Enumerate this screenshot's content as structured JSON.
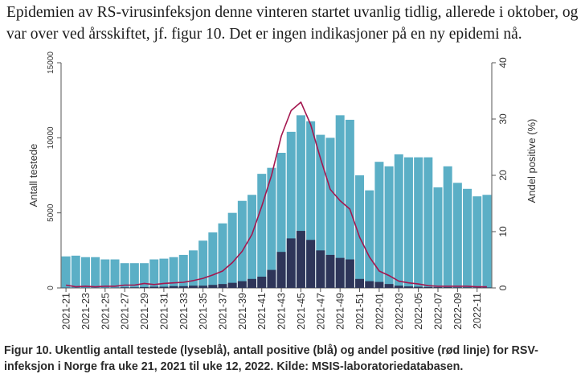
{
  "intro_text": "Epidemien av RS-virusinfeksjon denne vinteren startet uvanlig tidlig, allerede i oktober, og var over ved årsskiftet, jf. figur 10. Det er ingen indikasjoner på en ny epidemi nå.",
  "caption": "Figur 10. Ukentlig antall testede (lyseblå), antall positive (blå) og andel positive (rød linje) for RSV-infeksjon i Norge fra uke 21, 2021 til uke 12, 2022. Kilde: MSIS-laboratoriedatabasen.",
  "colors": {
    "tested": "#5bafc6",
    "positive": "#2e3559",
    "share_line": "#a4174f",
    "axis": "#555555"
  },
  "chart_data": {
    "type": "bar",
    "title": "",
    "xlabel": "",
    "ylabel": "Antall testede",
    "y2label": "Andel positive (%)",
    "ylim": [
      0,
      15000
    ],
    "y2lim": [
      0,
      40
    ],
    "yticks": [
      0,
      5000,
      10000,
      15000
    ],
    "y2ticks": [
      0,
      10,
      20,
      30,
      40
    ],
    "grid": false,
    "categories": [
      "2021-21",
      "2021-22",
      "2021-23",
      "2021-24",
      "2021-25",
      "2021-26",
      "2021-27",
      "2021-28",
      "2021-29",
      "2021-30",
      "2021-31",
      "2021-32",
      "2021-33",
      "2021-34",
      "2021-35",
      "2021-36",
      "2021-37",
      "2021-38",
      "2021-39",
      "2021-40",
      "2021-41",
      "2021-42",
      "2021-43",
      "2021-44",
      "2021-45",
      "2021-46",
      "2021-47",
      "2021-48",
      "2021-49",
      "2021-50",
      "2021-51",
      "2021-52",
      "2022-01",
      "2022-02",
      "2022-03",
      "2022-04",
      "2022-05",
      "2022-06",
      "2022-07",
      "2022-08",
      "2022-09",
      "2022-10",
      "2022-11",
      "2022-12"
    ],
    "tick_labels": [
      "2021-21",
      "2021-23",
      "2021-25",
      "2021-27",
      "2021-29",
      "2021-31",
      "2021-33",
      "2021-35",
      "2021-37",
      "2021-39",
      "2021-41",
      "2021-43",
      "2021-45",
      "2021-47",
      "2021-49",
      "2021-51",
      "2022-01",
      "2022-03",
      "2022-05",
      "2022-07",
      "2022-09",
      "2022-11"
    ],
    "series": [
      {
        "axis": "left",
        "kind": "bar",
        "values": [
          2100,
          2150,
          2050,
          2050,
          1900,
          1900,
          1650,
          1650,
          1650,
          1900,
          1950,
          2050,
          2200,
          2500,
          3150,
          3700,
          4300,
          5000,
          5800,
          6200,
          7600,
          8000,
          9000,
          10400,
          11500,
          11100,
          10200,
          10000,
          11500,
          11200,
          7500,
          6500,
          8400,
          8100,
          8900,
          8700,
          8700,
          8700,
          6700,
          8100,
          7000,
          6600,
          6100,
          6200
        ]
      },
      {
        "axis": "left",
        "kind": "bar",
        "values": [
          20,
          20,
          20,
          20,
          20,
          20,
          40,
          40,
          60,
          80,
          80,
          120,
          120,
          150,
          150,
          200,
          260,
          340,
          450,
          600,
          750,
          1200,
          2400,
          3300,
          3800,
          3200,
          2500,
          2200,
          2000,
          1900,
          600,
          450,
          400,
          260,
          150,
          100,
          80,
          60,
          50,
          50,
          40,
          40,
          30,
          30
        ]
      },
      {
        "axis": "right",
        "kind": "line",
        "values": [
          0.5,
          0.2,
          0.3,
          0.2,
          0.3,
          0.3,
          0.5,
          0.5,
          0.8,
          0.6,
          0.8,
          0.9,
          1.0,
          1.3,
          1.7,
          2.3,
          3.0,
          4.5,
          6.5,
          9.5,
          14.5,
          20.0,
          27.0,
          31.5,
          33.0,
          29.0,
          23.0,
          17.5,
          15.5,
          14.0,
          9.0,
          5.5,
          3.0,
          2.2,
          1.2,
          0.9,
          0.7,
          0.4,
          0.3,
          0.3,
          0.3,
          0.3,
          0.2,
          0.2
        ]
      }
    ]
  }
}
